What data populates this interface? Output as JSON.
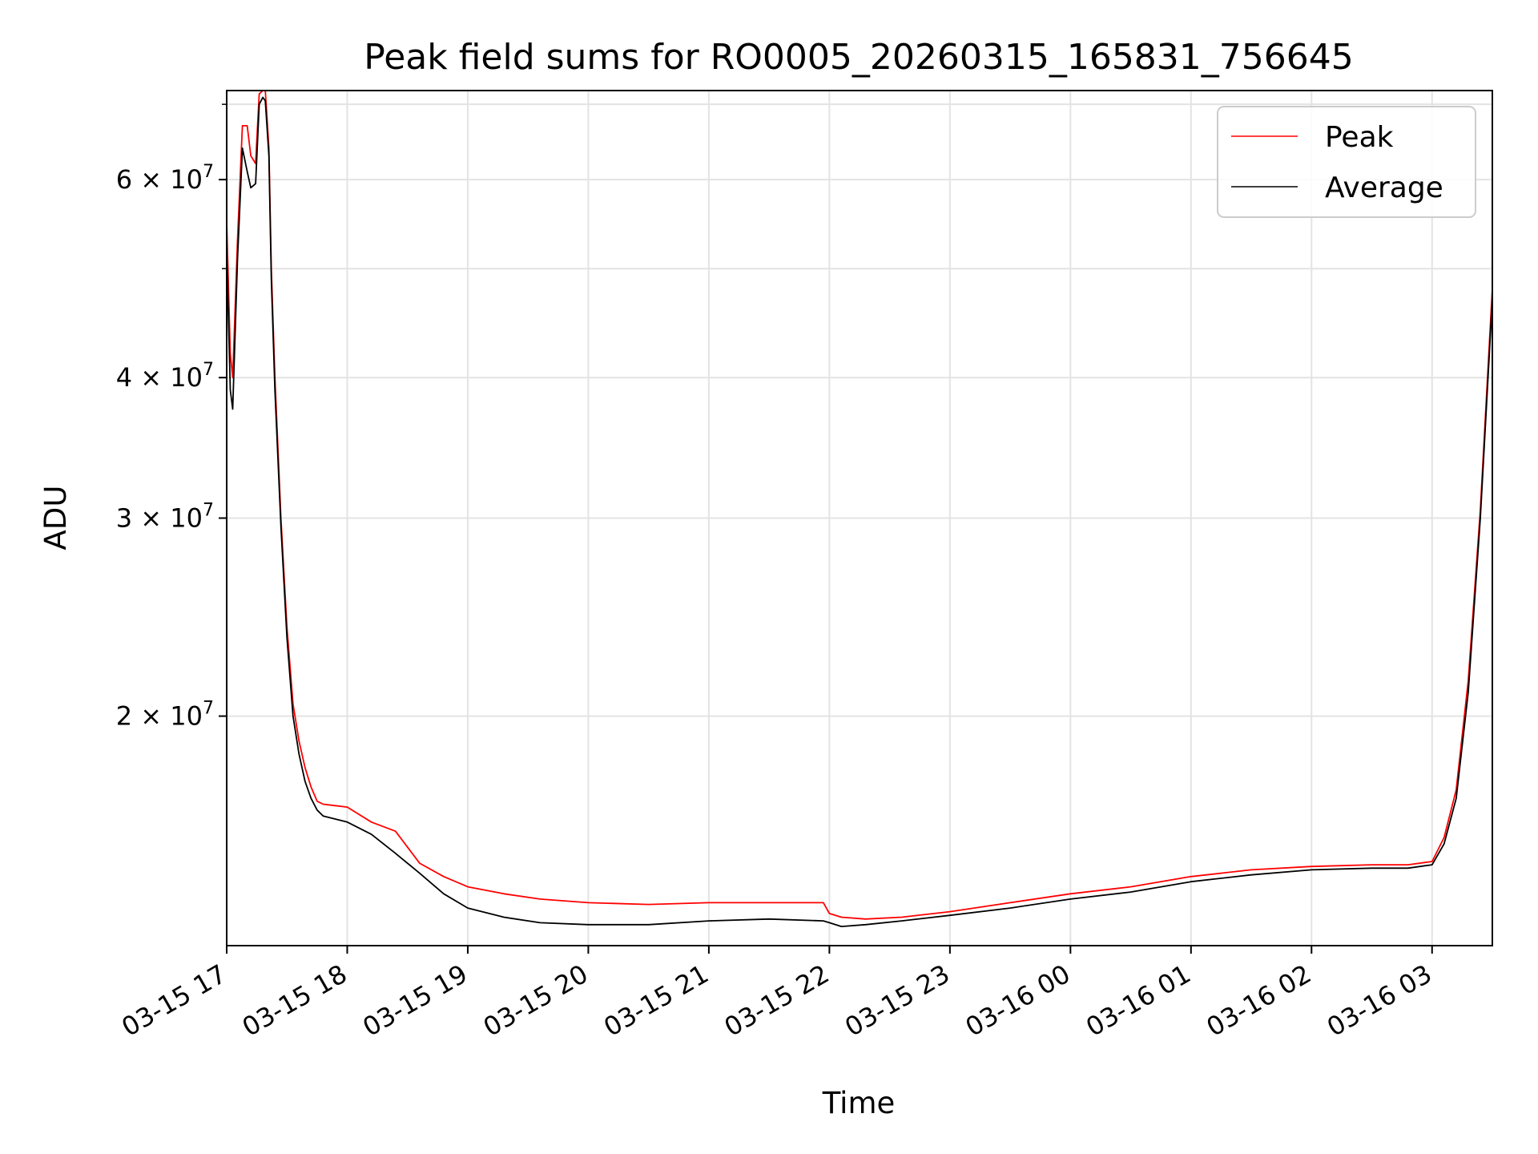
{
  "chart_data": {
    "type": "line",
    "title": "Peak field sums for RO0005_20260315_165831_756645",
    "xlabel": "Time",
    "ylabel": "ADU",
    "yscale": "log",
    "xlim_hours": [
      0.0,
      10.5
    ],
    "ylim": [
      12500000,
      72000000
    ],
    "grid": true,
    "legend_position": "top-right",
    "x_tick_labels": [
      "03-15 17",
      "03-15 18",
      "03-15 19",
      "03-15 20",
      "03-15 21",
      "03-15 22",
      "03-15 23",
      "03-16 00",
      "03-16 01",
      "03-16 02",
      "03-16 03"
    ],
    "x_tick_hours": [
      0,
      1,
      2,
      3,
      4,
      5,
      6,
      7,
      8,
      9,
      10
    ],
    "y_ticks": [
      {
        "value": 20000000,
        "mantissa": "2",
        "exponent": "7"
      },
      {
        "value": 30000000,
        "mantissa": "3",
        "exponent": "7"
      },
      {
        "value": 40000000,
        "mantissa": "4",
        "exponent": "7"
      },
      {
        "value": 60000000,
        "mantissa": "6",
        "exponent": "7"
      }
    ],
    "y_minor_ticks": [
      50000000,
      70000000
    ],
    "series": [
      {
        "name": "Peak",
        "color": "#ff0000",
        "x": [
          0.0,
          0.03,
          0.05,
          0.09,
          0.13,
          0.17,
          0.2,
          0.24,
          0.27,
          0.3,
          0.32,
          0.35,
          0.37,
          0.4,
          0.45,
          0.5,
          0.55,
          0.6,
          0.65,
          0.7,
          0.75,
          0.8,
          0.9,
          1.0,
          1.2,
          1.4,
          1.6,
          1.8,
          2.0,
          2.3,
          2.6,
          3.0,
          3.5,
          4.0,
          4.5,
          4.95,
          5.0,
          5.1,
          5.3,
          5.6,
          6.0,
          6.5,
          7.0,
          7.5,
          8.0,
          8.5,
          9.0,
          9.5,
          9.8,
          10.0,
          10.1,
          10.2,
          10.3,
          10.4,
          10.5
        ],
        "y": [
          55000000,
          42000000,
          40000000,
          53000000,
          67000000,
          67000000,
          63000000,
          62000000,
          71500000,
          72000000,
          72000000,
          64000000,
          50000000,
          40000000,
          30000000,
          24000000,
          20500000,
          19000000,
          18000000,
          17300000,
          16800000,
          16700000,
          16650000,
          16600000,
          16100000,
          15800000,
          14800000,
          14400000,
          14100000,
          13900000,
          13750000,
          13650000,
          13600000,
          13650000,
          13650000,
          13650000,
          13350000,
          13250000,
          13200000,
          13250000,
          13400000,
          13650000,
          13900000,
          14100000,
          14400000,
          14600000,
          14700000,
          14750000,
          14750000,
          14850000,
          15600000,
          17200000,
          21500000,
          30500000,
          48000000
        ]
      },
      {
        "name": "Average",
        "color": "#000000",
        "x": [
          0.0,
          0.03,
          0.05,
          0.09,
          0.13,
          0.17,
          0.2,
          0.24,
          0.27,
          0.3,
          0.32,
          0.35,
          0.37,
          0.4,
          0.45,
          0.5,
          0.55,
          0.6,
          0.65,
          0.7,
          0.75,
          0.8,
          0.9,
          1.0,
          1.2,
          1.4,
          1.6,
          1.8,
          2.0,
          2.3,
          2.6,
          3.0,
          3.5,
          4.0,
          4.5,
          4.95,
          5.0,
          5.1,
          5.3,
          5.6,
          6.0,
          6.5,
          7.0,
          7.5,
          8.0,
          8.5,
          9.0,
          9.5,
          9.8,
          10.0,
          10.1,
          10.2,
          10.3,
          10.4,
          10.5
        ],
        "y": [
          52000000,
          39000000,
          37500000,
          51000000,
          64000000,
          61000000,
          59000000,
          59500000,
          70000000,
          71000000,
          70500000,
          63000000,
          49000000,
          39000000,
          29500000,
          23500000,
          20000000,
          18500000,
          17500000,
          16900000,
          16500000,
          16300000,
          16200000,
          16100000,
          15700000,
          15100000,
          14500000,
          13900000,
          13500000,
          13250000,
          13100000,
          13050000,
          13050000,
          13150000,
          13200000,
          13150000,
          13100000,
          13000000,
          13050000,
          13150000,
          13300000,
          13500000,
          13750000,
          13950000,
          14250000,
          14450000,
          14600000,
          14650000,
          14650000,
          14750000,
          15400000,
          16900000,
          21000000,
          30000000,
          47000000
        ]
      }
    ]
  }
}
